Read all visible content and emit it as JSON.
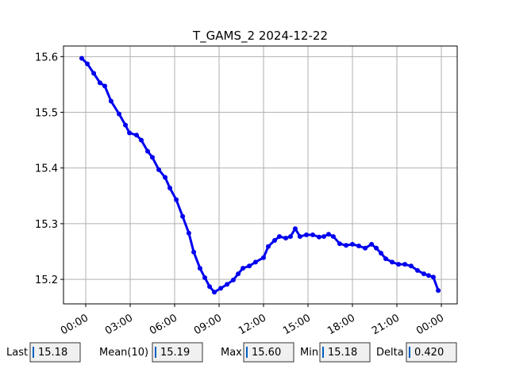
{
  "chart_data": {
    "type": "line",
    "title": "T_GAMS_2 2024-12-22",
    "x": [
      -0.27,
      0.11,
      0.54,
      0.96,
      1.29,
      1.71,
      2.25,
      2.68,
      2.95,
      3.43,
      3.75,
      4.18,
      4.5,
      4.93,
      5.36,
      5.68,
      6.11,
      6.54,
      6.96,
      7.29,
      7.71,
      8.04,
      8.36,
      8.68,
      9.11,
      9.54,
      9.96,
      10.29,
      10.61,
      11.04,
      11.46,
      12.0,
      12.32,
      12.75,
      13.07,
      13.5,
      13.82,
      14.14,
      14.46,
      14.89,
      15.32,
      15.75,
      16.07,
      16.39,
      16.71,
      17.14,
      17.57,
      18.0,
      18.43,
      18.86,
      19.29,
      19.61,
      19.93,
      20.25,
      20.68,
      21.11,
      21.54,
      21.96,
      22.39,
      22.82,
      23.14,
      23.46,
      23.79
    ],
    "series": [
      {
        "color": "#0000ee",
        "values": [
          15.597,
          15.587,
          15.57,
          15.553,
          15.547,
          15.52,
          15.497,
          15.477,
          15.463,
          15.459,
          15.45,
          15.43,
          15.419,
          15.397,
          15.383,
          15.364,
          15.343,
          15.313,
          15.283,
          15.249,
          15.22,
          15.203,
          15.187,
          15.177,
          15.184,
          15.191,
          15.199,
          15.21,
          15.22,
          15.224,
          15.231,
          15.239,
          15.259,
          15.27,
          15.277,
          15.274,
          15.277,
          15.291,
          15.277,
          15.28,
          15.28,
          15.276,
          15.277,
          15.281,
          15.277,
          15.264,
          15.261,
          15.263,
          15.26,
          15.256,
          15.263,
          15.256,
          15.247,
          15.237,
          15.231,
          15.227,
          15.227,
          15.224,
          15.216,
          15.21,
          15.207,
          15.204,
          15.18
        ]
      }
    ],
    "xlim": [
      -1.5,
      25.07
    ],
    "xticks": [
      {
        "value": 0,
        "label": "00:00"
      },
      {
        "value": 3,
        "label": "03:00"
      },
      {
        "value": 6,
        "label": "06:00"
      },
      {
        "value": 9,
        "label": "09:00"
      },
      {
        "value": 12,
        "label": "12:00"
      },
      {
        "value": 15,
        "label": "15:00"
      },
      {
        "value": 18,
        "label": "18:00"
      },
      {
        "value": 21,
        "label": "21:00"
      },
      {
        "value": 24,
        "label": "00:00"
      }
    ],
    "ylim": [
      15.156,
      15.619
    ],
    "yticks": [
      15.2,
      15.3,
      15.4,
      15.5,
      15.6
    ],
    "grid": true
  },
  "stats": [
    {
      "label": "Last",
      "value": "15.18"
    },
    {
      "label": "Mean(10)",
      "value": "15.19"
    },
    {
      "label": "Max",
      "value": "15.60"
    },
    {
      "label": "Min",
      "value": "15.18"
    },
    {
      "label": "Delta",
      "value": "0.420"
    }
  ]
}
